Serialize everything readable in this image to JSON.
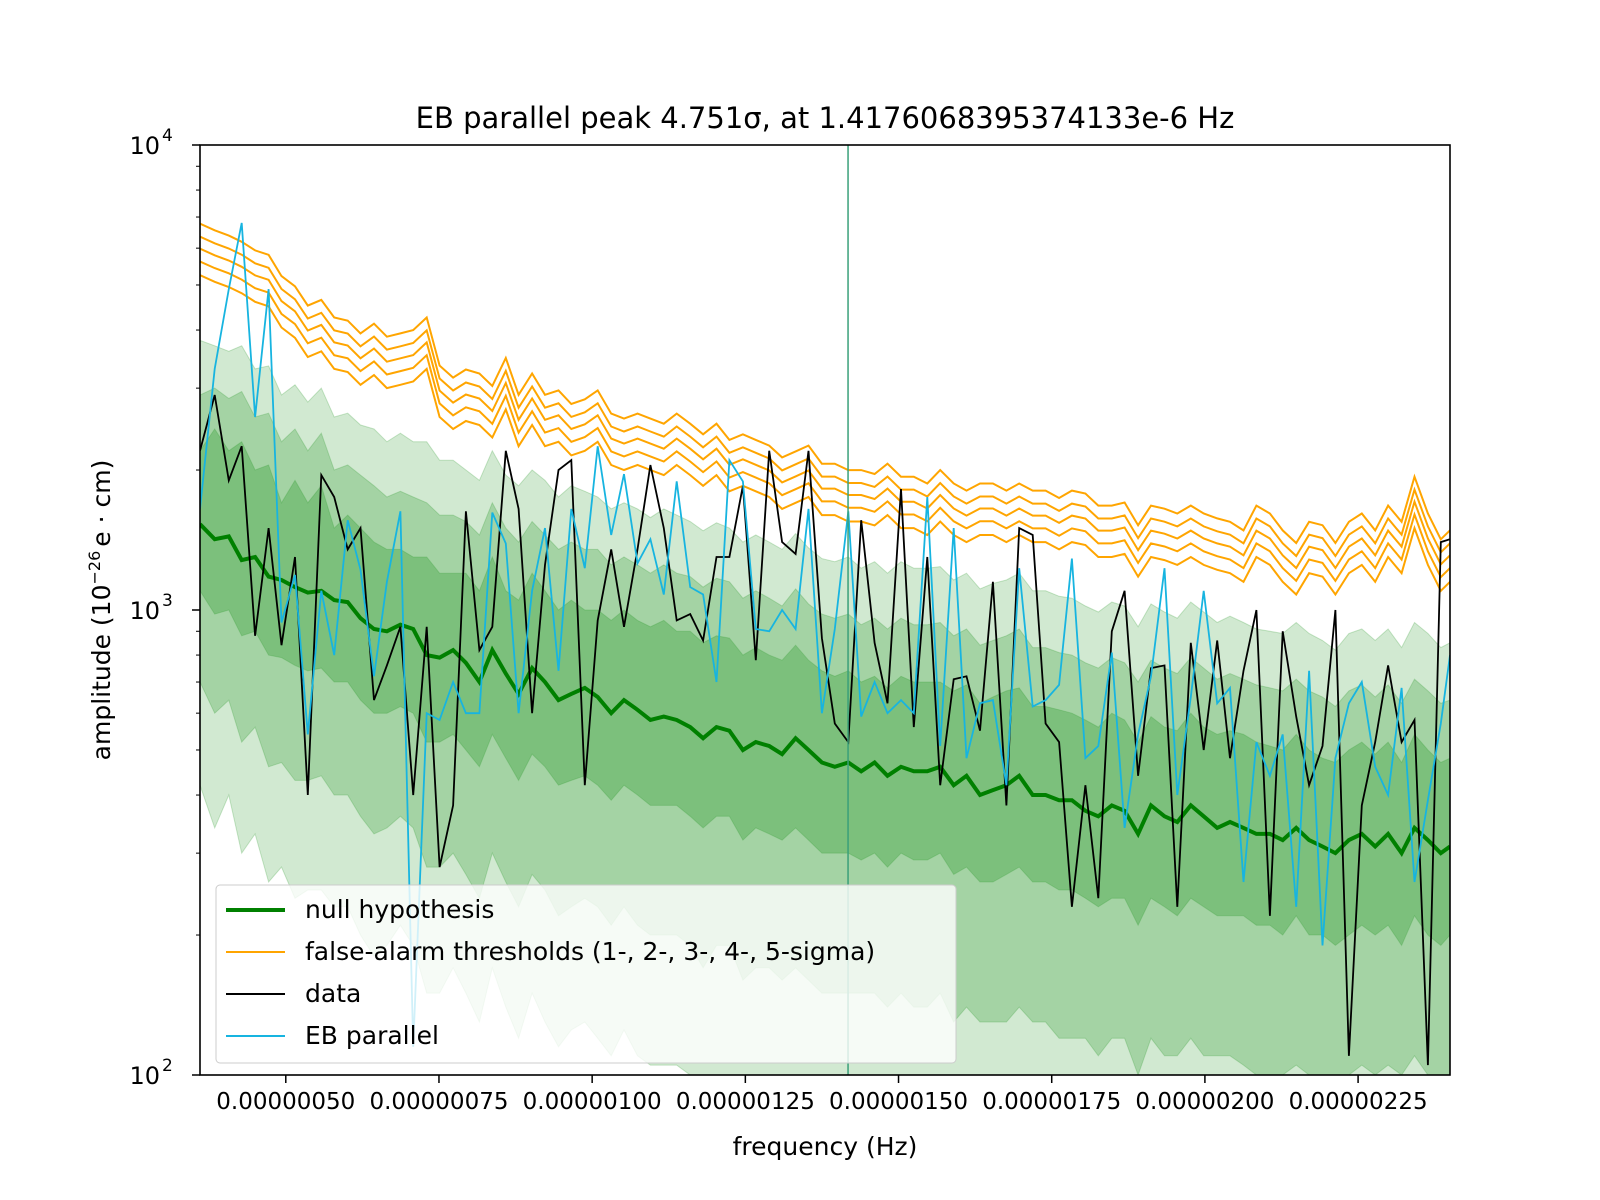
{
  "chart_data": {
    "type": "line",
    "title": "EB parallel peak 4.751σ, at 1.4176068395374133e-6 Hz",
    "xlabel": "frequency (Hz)",
    "ylabel": {
      "prefix": "amplitude (10",
      "exp": "−26",
      "suffix": "e · cm)"
    },
    "xlim": [
      3.6e-07,
      2.4e-06
    ],
    "ylim": [
      100,
      10000
    ],
    "yscale": "log",
    "grid": false,
    "legend_position": "lower-left",
    "x_ticks": [
      {
        "value": 5e-07,
        "label": "0.00000050"
      },
      {
        "value": 7.5e-07,
        "label": "0.00000075"
      },
      {
        "value": 1e-06,
        "label": "0.00000100"
      },
      {
        "value": 1.25e-06,
        "label": "0.00000125"
      },
      {
        "value": 1.5e-06,
        "label": "0.00000150"
      },
      {
        "value": 1.75e-06,
        "label": "0.00000175"
      },
      {
        "value": 2e-06,
        "label": "0.00000200"
      },
      {
        "value": 2.25e-06,
        "label": "0.00000225"
      }
    ],
    "y_ticks": [
      {
        "value": 100,
        "base": "10",
        "exp": "2"
      },
      {
        "value": 1000,
        "base": "10",
        "exp": "3"
      },
      {
        "value": 10000,
        "base": "10",
        "exp": "4"
      }
    ],
    "peak_line": {
      "x": 1.4176068395374133e-06,
      "color": "#3aa07a"
    },
    "colors": {
      "null": "#008000",
      "bands": "#2e9a2e",
      "thresholds": "#ffa500",
      "data": "#000000",
      "eb": "#17b4e0"
    },
    "x": [
      3.6e-07,
      3.84e-07,
      4.07e-07,
      4.28e-07,
      4.5e-07,
      4.72e-07,
      4.93e-07,
      5.15e-07,
      5.36e-07,
      5.58e-07,
      5.79e-07,
      6.01e-07,
      6.22e-07,
      6.44e-07,
      6.65e-07,
      6.87e-07,
      7.08e-07,
      7.3e-07,
      7.51e-07,
      7.73e-07,
      7.94e-07,
      8.16e-07,
      8.37e-07,
      8.59e-07,
      8.8e-07,
      9.02e-07,
      9.23e-07,
      9.45e-07,
      9.66e-07,
      9.88e-07,
      1.009e-06,
      1.031e-06,
      1.052e-06,
      1.074e-06,
      1.095e-06,
      1.117e-06,
      1.138e-06,
      1.16e-06,
      1.181e-06,
      1.203e-06,
      1.224e-06,
      1.246e-06,
      1.267e-06,
      1.289e-06,
      1.31e-06,
      1.332e-06,
      1.353e-06,
      1.375e-06,
      1.396e-06,
      1.418e-06,
      1.439e-06,
      1.461e-06,
      1.482e-06,
      1.504e-06,
      1.525e-06,
      1.547e-06,
      1.568e-06,
      1.59e-06,
      1.611e-06,
      1.633e-06,
      1.654e-06,
      1.676e-06,
      1.697e-06,
      1.719e-06,
      1.74e-06,
      1.762e-06,
      1.783e-06,
      1.805e-06,
      1.826e-06,
      1.848e-06,
      1.869e-06,
      1.891e-06,
      1.912e-06,
      1.934e-06,
      1.955e-06,
      1.977e-06,
      1.998e-06,
      2.02e-06,
      2.041e-06,
      2.063e-06,
      2.084e-06,
      2.106e-06,
      2.127e-06,
      2.149e-06,
      2.17e-06,
      2.192e-06,
      2.213e-06,
      2.235e-06,
      2.256e-06,
      2.278e-06,
      2.299e-06,
      2.321e-06,
      2.342e-06,
      2.364e-06,
      2.385e-06,
      2.4e-06
    ],
    "series": [
      {
        "name": "null hypothesis",
        "role": "null",
        "values": [
          1530,
          1420,
          1440,
          1280,
          1300,
          1180,
          1160,
          1120,
          1090,
          1100,
          1050,
          1040,
          960,
          910,
          900,
          930,
          910,
          800,
          790,
          820,
          770,
          700,
          820,
          730,
          660,
          750,
          700,
          640,
          660,
          680,
          650,
          600,
          640,
          610,
          580,
          590,
          580,
          560,
          530,
          560,
          550,
          500,
          520,
          510,
          490,
          530,
          500,
          470,
          460,
          470,
          450,
          470,
          440,
          460,
          450,
          450,
          460,
          420,
          440,
          400,
          410,
          420,
          440,
          400,
          400,
          390,
          390,
          370,
          360,
          380,
          370,
          330,
          380,
          360,
          350,
          380,
          360,
          340,
          350,
          340,
          330,
          330,
          320,
          340,
          320,
          310,
          300,
          320,
          330,
          310,
          330,
          300,
          340,
          320,
          300,
          310
        ]
      },
      {
        "name": "false-alarm thresholds (1-, 2-, 3-, 4-, 5-sigma)",
        "role": "thresholds",
        "levels": [
          1,
          2,
          3,
          4,
          5
        ],
        "factors": [
          1.0,
          1.07,
          1.14,
          1.21,
          1.29
        ],
        "values": [
          5250,
          5080,
          4950,
          4800,
          4600,
          4500,
          4050,
          3850,
          3500,
          3600,
          3300,
          3250,
          3050,
          3200,
          3000,
          3050,
          3100,
          3300,
          2600,
          2450,
          2550,
          2500,
          2350,
          2700,
          2250,
          2500,
          2250,
          2300,
          2150,
          2200,
          2300,
          2050,
          2000,
          2050,
          2000,
          1950,
          2050,
          1950,
          1850,
          1950,
          1800,
          1850,
          1800,
          1750,
          1650,
          1700,
          1750,
          1600,
          1600,
          1550,
          1550,
          1520,
          1600,
          1500,
          1500,
          1450,
          1550,
          1450,
          1400,
          1450,
          1450,
          1400,
          1450,
          1400,
          1400,
          1350,
          1400,
          1380,
          1300,
          1300,
          1320,
          1180,
          1300,
          1280,
          1250,
          1300,
          1250,
          1220,
          1200,
          1150,
          1300,
          1250,
          1150,
          1080,
          1200,
          1180,
          1080,
          1200,
          1250,
          1150,
          1300,
          1200,
          1500,
          1250,
          1100,
          1150
        ]
      },
      {
        "name": "data",
        "role": "data",
        "values": [
          2200,
          2900,
          1900,
          2250,
          880,
          1500,
          840,
          1300,
          400,
          1950,
          1750,
          1350,
          1500,
          640,
          760,
          920,
          400,
          920,
          280,
          380,
          1630,
          820,
          920,
          2200,
          1650,
          600,
          1250,
          2000,
          2100,
          420,
          950,
          1350,
          920,
          1350,
          2050,
          1500,
          950,
          980,
          860,
          1300,
          1300,
          1850,
          780,
          2200,
          1400,
          1320,
          2200,
          870,
          570,
          520,
          1560,
          850,
          630,
          1820,
          560,
          1300,
          420,
          710,
          720,
          550,
          1150,
          380,
          1500,
          1450,
          570,
          520,
          230,
          420,
          240,
          900,
          1100,
          440,
          750,
          760,
          230,
          850,
          500,
          860,
          480,
          740,
          1000,
          220,
          900,
          590,
          420,
          510,
          1000,
          110,
          380,
          520,
          760,
          520,
          580,
          105,
          1400,
          1420
        ]
      },
      {
        "name": "EB parallel",
        "role": "eb",
        "values": [
          1650,
          3300,
          4900,
          6800,
          2600,
          4900,
          940,
          1190,
          540,
          1100,
          800,
          1560,
          1220,
          720,
          1150,
          1630,
          115,
          600,
          580,
          700,
          600,
          600,
          1620,
          1390,
          600,
          1100,
          1500,
          740,
          1650,
          1230,
          2250,
          1450,
          1960,
          1260,
          1420,
          1080,
          1890,
          1120,
          1080,
          700,
          2100,
          1890,
          910,
          900,
          1000,
          910,
          1650,
          600,
          910,
          1630,
          590,
          700,
          600,
          640,
          600,
          1750,
          510,
          1500,
          480,
          630,
          640,
          420,
          1230,
          620,
          640,
          690,
          1290,
          480,
          510,
          810,
          340,
          540,
          720,
          1230,
          400,
          650,
          1100,
          630,
          680,
          260,
          520,
          440,
          540,
          230,
          740,
          190,
          480,
          630,
          700,
          460,
          400,
          680,
          260,
          390,
          570,
          800
        ]
      }
    ],
    "bands": {
      "one_sigma": {
        "upper": [
          2200,
          2450,
          2200,
          2300,
          2000,
          2050,
          1700,
          1900,
          1700,
          1850,
          1500,
          1600,
          1500,
          1400,
          1350,
          1350,
          1300,
          1300,
          1200,
          1200,
          1200,
          1100,
          1300,
          1100,
          1050,
          1200,
          1100,
          1000,
          1050,
          1000,
          1000,
          950,
          1000,
          950,
          920,
          950,
          900,
          900,
          850,
          880,
          870,
          800,
          830,
          800,
          780,
          840,
          780,
          740,
          720,
          740,
          700,
          720,
          680,
          720,
          700,
          700,
          700,
          670,
          690,
          630,
          650,
          670,
          680,
          620,
          620,
          610,
          600,
          580,
          560,
          600,
          580,
          520,
          590,
          560,
          550,
          600,
          560,
          540,
          550,
          540,
          520,
          510,
          500,
          540,
          500,
          480,
          470,
          500,
          520,
          490,
          520,
          470,
          540,
          500,
          470,
          480
        ],
        "lower": [
          1100,
          980,
          1000,
          880,
          900,
          800,
          790,
          760,
          740,
          750,
          700,
          700,
          640,
          600,
          600,
          620,
          600,
          520,
          520,
          540,
          500,
          460,
          540,
          480,
          430,
          490,
          460,
          420,
          430,
          440,
          420,
          390,
          420,
          400,
          380,
          380,
          380,
          360,
          340,
          360,
          360,
          320,
          340,
          330,
          320,
          340,
          320,
          300,
          300,
          300,
          290,
          300,
          280,
          300,
          290,
          290,
          300,
          270,
          280,
          260,
          260,
          270,
          280,
          260,
          260,
          250,
          250,
          240,
          230,
          240,
          240,
          210,
          240,
          230,
          220,
          240,
          230,
          220,
          220,
          220,
          210,
          210,
          200,
          220,
          200,
          200,
          190,
          200,
          210,
          200,
          210,
          190,
          220,
          200,
          190,
          200
        ]
      },
      "two_sigma": {
        "upper": [
          2900,
          3000,
          2850,
          2950,
          2600,
          2650,
          2300,
          2450,
          2200,
          2400,
          2000,
          2050,
          1950,
          1850,
          1750,
          1800,
          1750,
          1700,
          1600,
          1600,
          1550,
          1450,
          1700,
          1500,
          1400,
          1550,
          1450,
          1350,
          1400,
          1350,
          1350,
          1250,
          1300,
          1250,
          1200,
          1250,
          1200,
          1180,
          1120,
          1170,
          1150,
          1060,
          1100,
          1060,
          1020,
          1110,
          1030,
          980,
          960,
          980,
          930,
          960,
          910,
          960,
          930,
          930,
          940,
          880,
          910,
          840,
          860,
          880,
          910,
          830,
          830,
          810,
          800,
          770,
          750,
          790,
          770,
          700,
          780,
          750,
          730,
          790,
          750,
          710,
          730,
          710,
          690,
          680,
          670,
          710,
          670,
          650,
          620,
          670,
          690,
          650,
          690,
          630,
          710,
          670,
          630,
          640
        ],
        "lower": [
          700,
          600,
          640,
          520,
          560,
          460,
          470,
          430,
          430,
          440,
          400,
          400,
          360,
          330,
          340,
          360,
          340,
          280,
          280,
          300,
          270,
          240,
          300,
          260,
          230,
          270,
          250,
          220,
          230,
          240,
          230,
          210,
          230,
          210,
          200,
          200,
          200,
          190,
          170,
          190,
          190,
          160,
          170,
          170,
          160,
          170,
          160,
          150,
          150,
          150,
          150,
          150,
          140,
          150,
          140,
          140,
          150,
          130,
          140,
          130,
          130,
          130,
          140,
          130,
          130,
          120,
          120,
          120,
          110,
          120,
          120,
          100,
          120,
          110,
          110,
          120,
          110,
          110,
          110,
          105,
          100,
          100,
          100,
          105,
          100,
          100,
          100,
          100,
          105,
          100,
          105,
          100,
          110,
          100,
          100,
          100
        ]
      },
      "three_sigma": {
        "upper": [
          3800,
          3700,
          3600,
          3700,
          3300,
          3350,
          2900,
          3050,
          2800,
          3000,
          2600,
          2650,
          2500,
          2450,
          2300,
          2400,
          2300,
          2300,
          2100,
          2100,
          2000,
          1900,
          2200,
          1950,
          1850,
          2000,
          1900,
          1750,
          1850,
          1800,
          1750,
          1650,
          1700,
          1650,
          1580,
          1650,
          1600,
          1550,
          1480,
          1540,
          1500,
          1400,
          1450,
          1400,
          1350,
          1460,
          1360,
          1290,
          1270,
          1300,
          1230,
          1270,
          1200,
          1270,
          1230,
          1230,
          1240,
          1160,
          1200,
          1110,
          1140,
          1160,
          1200,
          1100,
          1100,
          1070,
          1060,
          1020,
          990,
          1040,
          1020,
          920,
          1030,
          990,
          960,
          1040,
          990,
          940,
          970,
          940,
          910,
          900,
          890,
          940,
          890,
          860,
          820,
          890,
          910,
          860,
          910,
          830,
          940,
          890,
          830,
          850
        ],
        "lower": [
          420,
          340,
          400,
          300,
          330,
          260,
          280,
          240,
          250,
          250,
          230,
          230,
          200,
          180,
          190,
          210,
          190,
          150,
          150,
          170,
          150,
          130,
          170,
          140,
          120,
          150,
          130,
          115,
          125,
          130,
          120,
          110,
          125,
          110,
          105,
          105,
          105,
          100,
          100,
          100,
          100,
          100,
          100,
          100,
          100,
          100,
          100,
          100,
          100,
          100,
          100,
          100,
          100,
          100,
          100,
          100,
          100,
          100,
          100,
          100,
          100,
          100,
          100,
          100,
          100,
          100,
          100,
          100,
          100,
          100,
          100,
          100,
          100,
          100,
          100,
          100,
          100,
          100,
          100,
          100,
          100,
          100,
          100,
          100,
          100,
          100,
          100,
          100,
          100,
          100,
          100,
          100,
          100,
          100,
          100,
          100
        ]
      }
    }
  }
}
